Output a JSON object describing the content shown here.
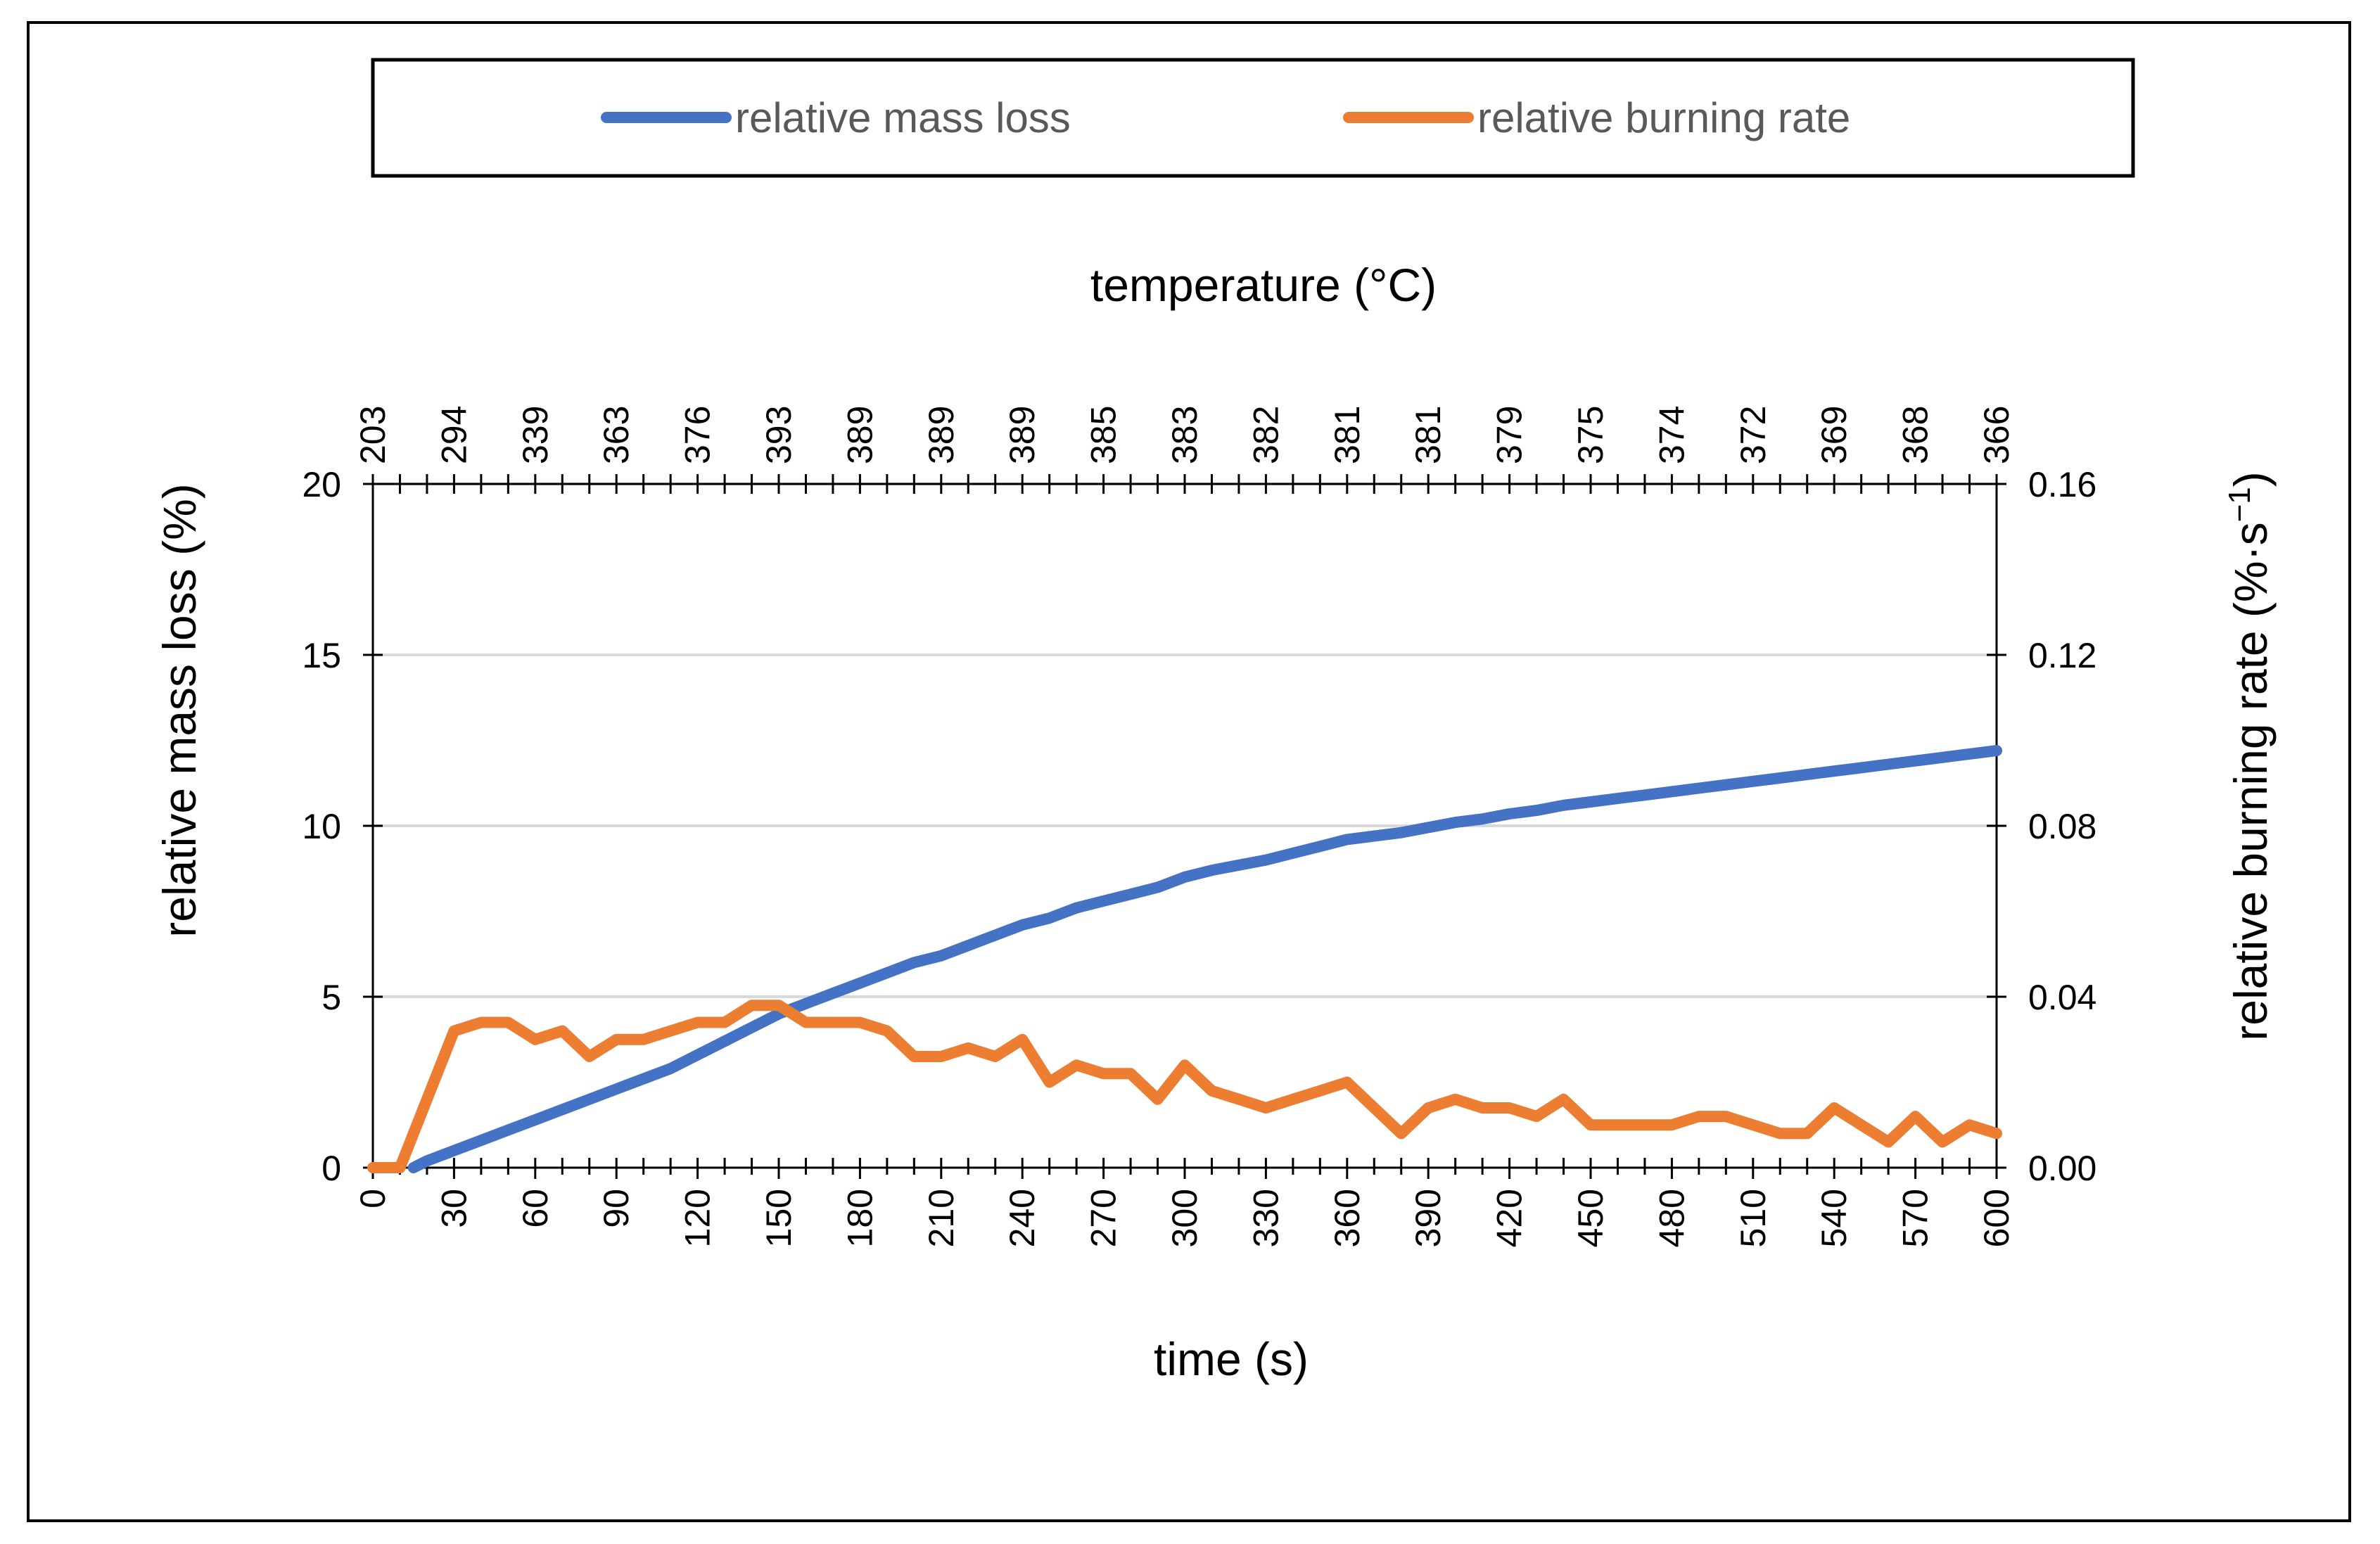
{
  "chart_data": {
    "type": "line",
    "title": "",
    "xlabel": "time (s)",
    "x2label": "temperature (°C)",
    "ylabel": "relative mass loss (%)",
    "y2label": "relative burning rate (%·s⁻¹)",
    "xlim": [
      0,
      600
    ],
    "ylim": [
      0,
      20
    ],
    "y2lim": [
      0,
      0.16
    ],
    "x_ticks": [
      "0",
      "30",
      "60",
      "90",
      "120",
      "150",
      "180",
      "210",
      "240",
      "270",
      "300",
      "330",
      "360",
      "390",
      "420",
      "450",
      "480",
      "510",
      "540",
      "570",
      "600"
    ],
    "y_ticks": [
      "0",
      "5",
      "10",
      "15",
      "20"
    ],
    "y2_ticks": [
      "0.00",
      "0.04",
      "0.08",
      "0.12",
      "0.16"
    ],
    "top_tick_labels": [
      "203",
      "294",
      "339",
      "363",
      "376",
      "393",
      "389",
      "389",
      "389",
      "385",
      "383",
      "382",
      "381",
      "381",
      "379",
      "375",
      "374",
      "372",
      "369",
      "368",
      "366"
    ],
    "grid": "horizontal",
    "legend_position": "top",
    "x": [
      0,
      10,
      20,
      30,
      40,
      50,
      60,
      70,
      80,
      90,
      100,
      110,
      120,
      130,
      140,
      150,
      160,
      170,
      180,
      190,
      200,
      210,
      220,
      230,
      240,
      250,
      260,
      270,
      280,
      290,
      300,
      310,
      320,
      330,
      340,
      350,
      360,
      370,
      380,
      390,
      400,
      410,
      420,
      430,
      440,
      450,
      460,
      470,
      480,
      490,
      500,
      510,
      520,
      530,
      540,
      550,
      560,
      570,
      580,
      590,
      600
    ],
    "series": [
      {
        "name": "relative mass loss",
        "axis": "left",
        "color": "#4472C4",
        "x": [
          15,
          20,
          30,
          40,
          50,
          60,
          70,
          80,
          90,
          100,
          110,
          120,
          130,
          140,
          150,
          160,
          170,
          180,
          190,
          200,
          210,
          220,
          230,
          240,
          250,
          260,
          270,
          280,
          290,
          300,
          310,
          320,
          330,
          340,
          350,
          360,
          370,
          380,
          390,
          400,
          410,
          420,
          430,
          440,
          450,
          460,
          470,
          480,
          490,
          500,
          510,
          520,
          530,
          540,
          550,
          560,
          570,
          580,
          590,
          600
        ],
        "values": [
          0,
          0.2,
          0.5,
          0.8,
          1.1,
          1.4,
          1.7,
          2.0,
          2.3,
          2.6,
          2.9,
          3.3,
          3.7,
          4.1,
          4.5,
          4.8,
          5.1,
          5.4,
          5.7,
          6.0,
          6.2,
          6.5,
          6.8,
          7.1,
          7.3,
          7.6,
          7.8,
          8.0,
          8.2,
          8.5,
          8.7,
          8.85,
          9.0,
          9.2,
          9.4,
          9.6,
          9.7,
          9.8,
          9.95,
          10.1,
          10.2,
          10.35,
          10.45,
          10.6,
          10.7,
          10.8,
          10.9,
          11.0,
          11.1,
          11.2,
          11.3,
          11.4,
          11.5,
          11.6,
          11.7,
          11.8,
          11.9,
          12.0,
          12.1,
          12.2
        ]
      },
      {
        "name": "relative burning rate",
        "axis": "right",
        "color": "#ED7D31",
        "x": [
          0,
          10,
          20,
          30,
          40,
          50,
          60,
          70,
          80,
          90,
          100,
          110,
          120,
          130,
          140,
          150,
          160,
          170,
          180,
          190,
          200,
          210,
          220,
          230,
          240,
          250,
          260,
          270,
          280,
          290,
          300,
          310,
          320,
          330,
          340,
          350,
          360,
          370,
          380,
          390,
          400,
          410,
          420,
          430,
          440,
          450,
          460,
          470,
          480,
          490,
          500,
          510,
          520,
          530,
          540,
          550,
          560,
          570,
          580,
          590,
          600
        ],
        "values": [
          0,
          0,
          0.016,
          0.032,
          0.034,
          0.034,
          0.03,
          0.032,
          0.026,
          0.03,
          0.03,
          0.032,
          0.034,
          0.034,
          0.038,
          0.038,
          0.034,
          0.034,
          0.034,
          0.032,
          0.026,
          0.026,
          0.028,
          0.026,
          0.03,
          0.02,
          0.024,
          0.022,
          0.022,
          0.016,
          0.024,
          0.018,
          0.016,
          0.014,
          0.016,
          0.018,
          0.02,
          0.014,
          0.008,
          0.014,
          0.016,
          0.014,
          0.014,
          0.012,
          0.016,
          0.01,
          0.01,
          0.01,
          0.01,
          0.012,
          0.012,
          0.01,
          0.008,
          0.008,
          0.014,
          0.01,
          0.006,
          0.012,
          0.006,
          0.01,
          0.008
        ]
      }
    ]
  }
}
